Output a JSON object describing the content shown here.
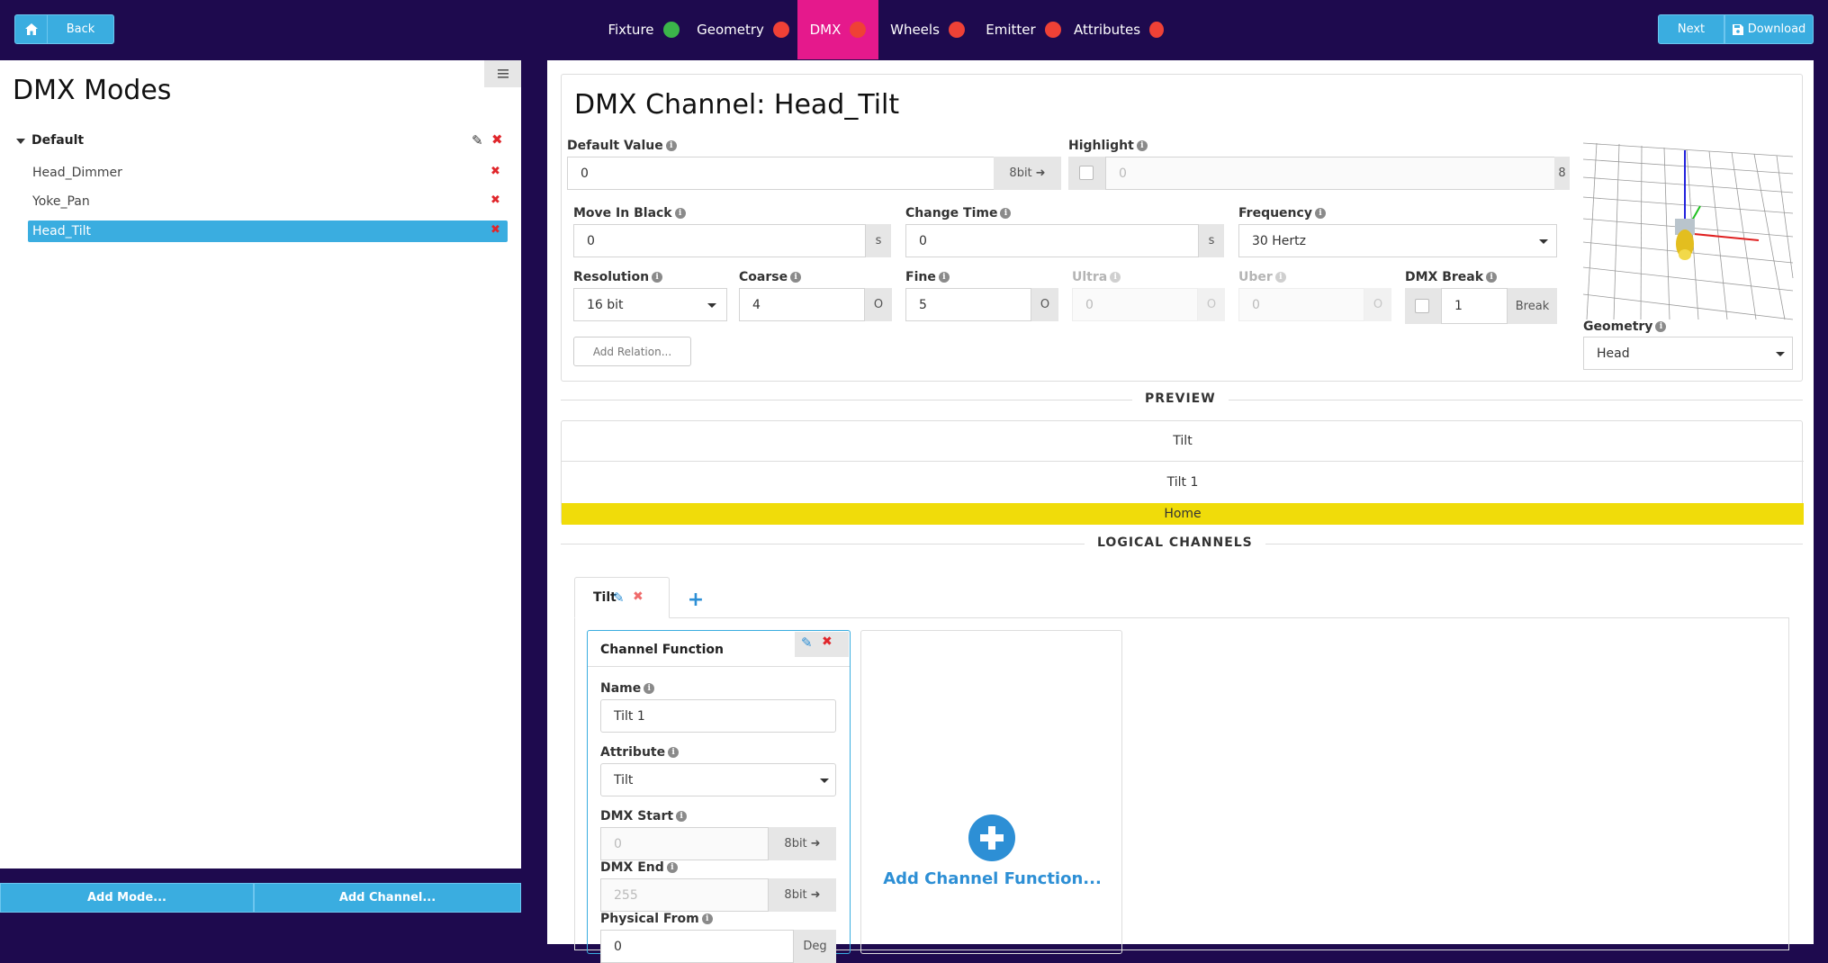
{
  "topbar": {
    "home_icon": "home-icon",
    "back_label": "Back",
    "tabs": [
      {
        "label": "Fixture",
        "status": "green"
      },
      {
        "label": "Geometry",
        "status": "red"
      },
      {
        "label": "DMX",
        "status": "red"
      },
      {
        "label": "Wheels",
        "status": "red"
      },
      {
        "label": "Emitter",
        "status": "red"
      },
      {
        "label": "Attributes",
        "status": "red"
      }
    ],
    "active_tab": "DMX",
    "next_label": "Next",
    "download_label": "Download",
    "colors": {
      "background": "#1e0a4e",
      "active_tab": "#e5198c",
      "accent": "#3aade0",
      "ok": "#3bb54a",
      "error": "#ef4136"
    }
  },
  "sidebar": {
    "title": "DMX Modes",
    "mode_name": "Default",
    "channels": [
      {
        "label": "Head_Dimmer",
        "selected": false
      },
      {
        "label": "Yoke_Pan",
        "selected": false
      },
      {
        "label": "Head_Tilt",
        "selected": true
      }
    ],
    "add_mode_label": "Add Mode...",
    "add_channel_label": "Add Channel..."
  },
  "channel": {
    "title": "DMX Channel: Head_Tilt",
    "default_value": {
      "label": "Default Value",
      "value": "0",
      "addon": "8bit"
    },
    "highlight": {
      "label": "Highlight",
      "placeholder": "0",
      "addon": "8"
    },
    "move_in_black": {
      "label": "Move In Black",
      "value": "0",
      "unit": "s"
    },
    "change_time": {
      "label": "Change Time",
      "value": "0",
      "unit": "s"
    },
    "frequency": {
      "label": "Frequency",
      "value": "30 Hertz"
    },
    "resolution": {
      "label": "Resolution",
      "value": "16 bit"
    },
    "coarse": {
      "label": "Coarse",
      "value": "4",
      "addon": "O"
    },
    "fine": {
      "label": "Fine",
      "value": "5",
      "addon": "O"
    },
    "ultra": {
      "label": "Ultra",
      "value": "0",
      "addon": "O"
    },
    "uber": {
      "label": "Uber",
      "value": "0",
      "addon": "O"
    },
    "dmx_break": {
      "label": "DMX Break",
      "value": "1",
      "addon": "Break"
    },
    "add_relation_label": "Add Relation...",
    "geometry": {
      "label": "Geometry",
      "value": "Head"
    }
  },
  "preview": {
    "title": "PREVIEW",
    "rows": [
      "Tilt",
      "Tilt 1",
      "Home"
    ]
  },
  "logical": {
    "title": "LOGICAL CHANNELS",
    "tab_label": "Tilt",
    "add_tab": "+",
    "function_card": {
      "title": "Channel Function",
      "name": {
        "label": "Name",
        "value": "Tilt 1"
      },
      "attribute": {
        "label": "Attribute",
        "value": "Tilt"
      },
      "dmx_start": {
        "label": "DMX Start",
        "value": "0",
        "addon": "8bit"
      },
      "dmx_end": {
        "label": "DMX End",
        "value": "255",
        "addon": "8bit"
      },
      "physical_from": {
        "label": "Physical From",
        "value": "0",
        "addon": "Deg"
      }
    },
    "add_function_label": "Add Channel Function..."
  }
}
